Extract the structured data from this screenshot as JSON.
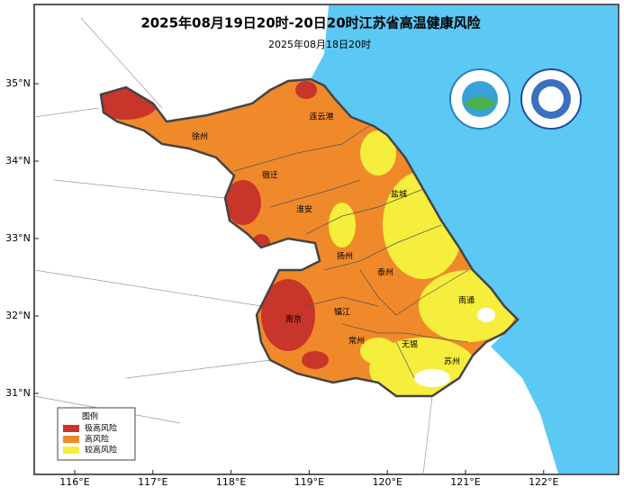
{
  "header": {
    "title": "2025年08月19日20时-20日20时江苏省高温健康风险",
    "subtitle": "2025年08月18日20时"
  },
  "map": {
    "lon_ticks": [
      {
        "value": 116,
        "label": "116°E"
      },
      {
        "value": 117,
        "label": "117°E"
      },
      {
        "value": 118,
        "label": "118°E"
      },
      {
        "value": 119,
        "label": "119°E"
      },
      {
        "value": 120,
        "label": "120°E"
      },
      {
        "value": 121,
        "label": "121°E"
      },
      {
        "value": 122,
        "label": "122°E"
      }
    ],
    "lat_ticks": [
      {
        "value": 35,
        "label": "35°N"
      },
      {
        "value": 34,
        "label": "34°N"
      },
      {
        "value": 33,
        "label": "33°N"
      },
      {
        "value": 32,
        "label": "32°N"
      },
      {
        "value": 31,
        "label": "31°N"
      }
    ],
    "cities": [
      "连云港",
      "徐州",
      "宿迁",
      "盐城",
      "淮安",
      "扬州",
      "泰州",
      "南通",
      "南京",
      "镇江",
      "常州",
      "无锡",
      "苏州"
    ]
  },
  "legend": {
    "title": "图例",
    "items": [
      {
        "label": "极高风险",
        "color": "#c8352b"
      },
      {
        "label": "高风险",
        "color": "#f0892a"
      },
      {
        "label": "较高风险",
        "color": "#f6ee3c"
      }
    ]
  }
}
